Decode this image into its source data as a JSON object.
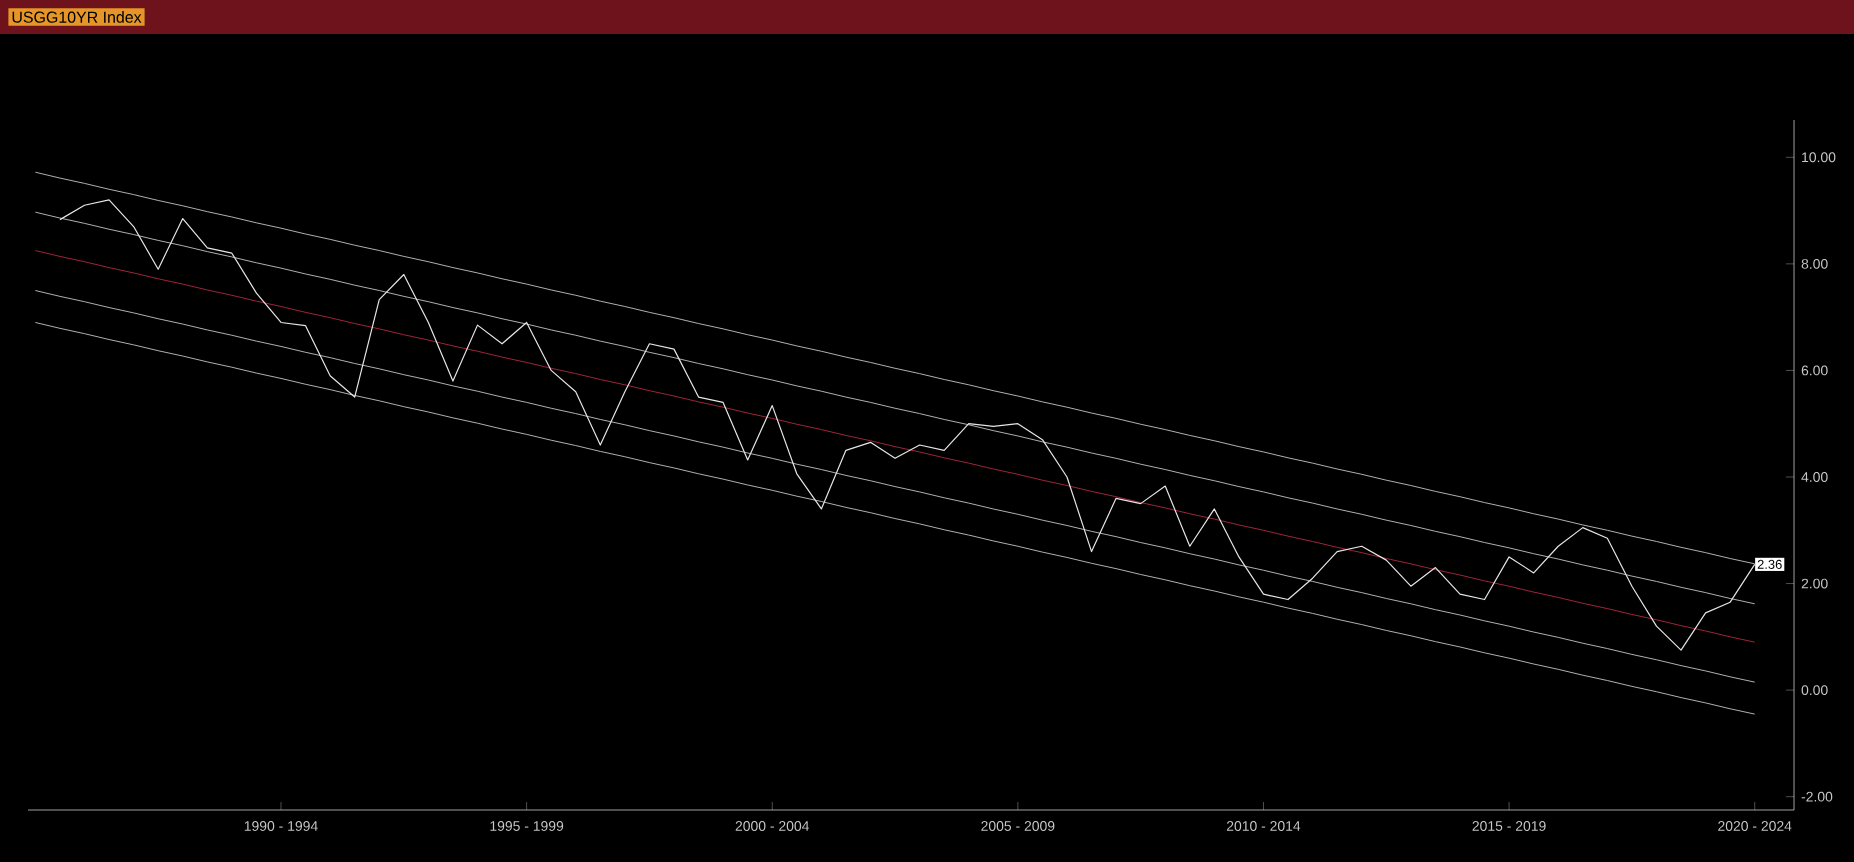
{
  "chart_data": {
    "type": "line",
    "title": "USGG10YR Index",
    "categories": [
      null,
      null,
      null,
      null,
      null,
      null,
      null,
      null,
      null,
      null,
      "1990 - 1994",
      null,
      null,
      null,
      null,
      null,
      null,
      null,
      null,
      null,
      "1995 - 1999",
      null,
      null,
      null,
      null,
      null,
      null,
      null,
      null,
      null,
      "2000 - 2004",
      null,
      null,
      null,
      null,
      null,
      null,
      null,
      null,
      null,
      "2005 - 2009",
      null,
      null,
      null,
      null,
      null,
      null,
      null,
      null,
      null,
      "2010 - 2014",
      null,
      null,
      null,
      null,
      null,
      null,
      null,
      null,
      null,
      "2015 - 2019",
      null,
      null,
      null,
      null,
      null,
      null,
      null,
      null,
      null,
      "2020 - 2024"
    ],
    "ylim": [
      -2.25,
      10.7
    ],
    "yticks": [
      {
        "value": -2,
        "label": "-2.00"
      },
      {
        "value": 0,
        "label": "0.00"
      },
      {
        "value": 2,
        "label": "2.00"
      },
      {
        "value": 4,
        "label": "4.00"
      },
      {
        "value": 6,
        "label": "6.00"
      },
      {
        "value": 8,
        "label": "8.00"
      },
      {
        "value": 10,
        "label": "10.00"
      }
    ],
    "series": [
      {
        "color": "#b0b0b0",
        "values": [
          9.72,
          9.61,
          9.51,
          9.4,
          9.3,
          9.19,
          9.09,
          8.98,
          8.88,
          8.77,
          8.67,
          8.56,
          8.46,
          8.35,
          8.25,
          8.14,
          8.04,
          7.93,
          7.83,
          7.72,
          7.62,
          7.51,
          7.41,
          7.3,
          7.2,
          7.09,
          6.99,
          6.88,
          6.78,
          6.67,
          6.57,
          6.46,
          6.36,
          6.25,
          6.15,
          6.04,
          5.94,
          5.83,
          5.73,
          5.62,
          5.52,
          5.41,
          5.31,
          5.2,
          5.1,
          4.99,
          4.89,
          4.78,
          4.68,
          4.57,
          4.47,
          4.36,
          4.26,
          4.15,
          4.05,
          3.94,
          3.84,
          3.73,
          3.63,
          3.52,
          3.42,
          3.31,
          3.21,
          3.1,
          3.0,
          2.89,
          2.79,
          2.68,
          2.58,
          2.47,
          2.37
        ]
      },
      {
        "color": "#b0b0b0",
        "values": [
          8.97,
          8.86,
          8.76,
          8.65,
          8.55,
          8.44,
          8.34,
          8.23,
          8.13,
          8.02,
          7.92,
          7.81,
          7.71,
          7.6,
          7.5,
          7.39,
          7.29,
          7.18,
          7.08,
          6.97,
          6.87,
          6.76,
          6.66,
          6.55,
          6.45,
          6.34,
          6.24,
          6.13,
          6.03,
          5.92,
          5.82,
          5.71,
          5.61,
          5.5,
          5.4,
          5.29,
          5.19,
          5.08,
          4.98,
          4.87,
          4.77,
          4.66,
          4.56,
          4.45,
          4.35,
          4.24,
          4.14,
          4.03,
          3.93,
          3.82,
          3.72,
          3.61,
          3.51,
          3.4,
          3.3,
          3.19,
          3.09,
          2.98,
          2.88,
          2.77,
          2.67,
          2.56,
          2.46,
          2.35,
          2.25,
          2.14,
          2.04,
          1.93,
          1.83,
          1.72,
          1.62
        ]
      },
      {
        "color": "#a0243a",
        "values": [
          8.25,
          8.14,
          8.04,
          7.93,
          7.83,
          7.72,
          7.62,
          7.51,
          7.41,
          7.3,
          7.2,
          7.09,
          6.99,
          6.88,
          6.78,
          6.67,
          6.57,
          6.46,
          6.36,
          6.25,
          6.15,
          6.04,
          5.94,
          5.83,
          5.73,
          5.62,
          5.52,
          5.41,
          5.31,
          5.2,
          5.1,
          4.99,
          4.89,
          4.78,
          4.68,
          4.57,
          4.47,
          4.36,
          4.26,
          4.15,
          4.05,
          3.94,
          3.84,
          3.73,
          3.63,
          3.52,
          3.42,
          3.31,
          3.21,
          3.1,
          3.0,
          2.89,
          2.79,
          2.68,
          2.58,
          2.47,
          2.37,
          2.26,
          2.16,
          2.05,
          1.95,
          1.84,
          1.74,
          1.63,
          1.53,
          1.42,
          1.32,
          1.21,
          1.11,
          1.0,
          0.9
        ]
      },
      {
        "color": "#b0b0b0",
        "values": [
          7.5,
          7.39,
          7.29,
          7.18,
          7.08,
          6.97,
          6.87,
          6.76,
          6.66,
          6.55,
          6.45,
          6.34,
          6.24,
          6.13,
          6.03,
          5.92,
          5.82,
          5.71,
          5.61,
          5.5,
          5.4,
          5.29,
          5.19,
          5.08,
          4.98,
          4.87,
          4.77,
          4.66,
          4.56,
          4.45,
          4.35,
          4.24,
          4.14,
          4.03,
          3.93,
          3.82,
          3.72,
          3.61,
          3.51,
          3.4,
          3.3,
          3.19,
          3.09,
          2.98,
          2.88,
          2.77,
          2.67,
          2.56,
          2.46,
          2.35,
          2.25,
          2.14,
          2.04,
          1.93,
          1.83,
          1.72,
          1.62,
          1.51,
          1.41,
          1.3,
          1.2,
          1.09,
          0.99,
          0.88,
          0.78,
          0.67,
          0.57,
          0.46,
          0.36,
          0.25,
          0.15
        ]
      },
      {
        "color": "#b0b0b0",
        "values": [
          6.9,
          6.79,
          6.69,
          6.58,
          6.48,
          6.37,
          6.27,
          6.16,
          6.06,
          5.95,
          5.85,
          5.74,
          5.64,
          5.53,
          5.43,
          5.32,
          5.22,
          5.11,
          5.01,
          4.9,
          4.8,
          4.69,
          4.59,
          4.48,
          4.38,
          4.27,
          4.17,
          4.06,
          3.96,
          3.85,
          3.75,
          3.64,
          3.54,
          3.43,
          3.33,
          3.22,
          3.12,
          3.01,
          2.91,
          2.8,
          2.7,
          2.59,
          2.49,
          2.38,
          2.28,
          2.17,
          2.07,
          1.96,
          1.86,
          1.75,
          1.65,
          1.54,
          1.44,
          1.33,
          1.23,
          1.12,
          1.02,
          0.91,
          0.81,
          0.7,
          0.6,
          0.49,
          0.39,
          0.28,
          0.18,
          0.07,
          -0.03,
          -0.14,
          -0.24,
          -0.35,
          -0.45
        ]
      },
      {
        "color": "#e6e6e6",
        "values": [
          null,
          8.83,
          9.1,
          9.2,
          8.7,
          7.9,
          8.85,
          8.3,
          8.2,
          7.45,
          6.9,
          6.84,
          5.9,
          5.5,
          7.33,
          7.8,
          6.9,
          5.8,
          6.85,
          6.5,
          6.9,
          6.0,
          5.6,
          4.6,
          5.6,
          6.5,
          6.4,
          5.5,
          5.4,
          4.32,
          5.34,
          4.06,
          3.4,
          4.5,
          4.65,
          4.35,
          4.6,
          4.5,
          5.0,
          4.95,
          5.0,
          4.7,
          4.0,
          2.6,
          3.6,
          3.5,
          3.83,
          2.7,
          3.4,
          2.5,
          1.8,
          1.7,
          2.1,
          2.6,
          2.7,
          2.44,
          1.95,
          2.3,
          1.8,
          1.7,
          2.5,
          2.2,
          2.7,
          3.05,
          2.85,
          1.95,
          1.2,
          0.75,
          1.45,
          1.65,
          2.36
        ]
      }
    ],
    "annotations": [
      {
        "text": "2.36",
        "y": 2.36
      }
    ],
    "marker": "none"
  }
}
